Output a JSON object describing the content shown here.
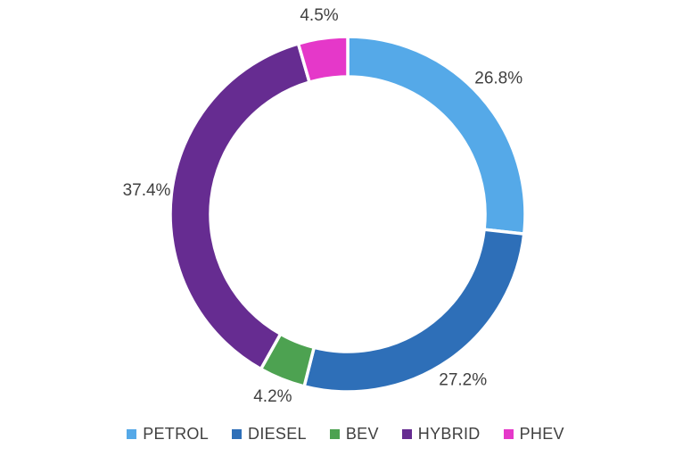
{
  "chart_data": {
    "type": "pie",
    "subtype": "donut",
    "title": "",
    "categories": [
      "PETROL",
      "DIESEL",
      "BEV",
      "HYBRID",
      "PHEV"
    ],
    "values": [
      26.8,
      27.2,
      4.2,
      37.4,
      4.5
    ],
    "data_labels": [
      "26.8%",
      "27.2%",
      "4.2%",
      "37.4%",
      "4.5%"
    ],
    "colors": [
      "#55A9E8",
      "#2E6FB8",
      "#4DA251",
      "#662C91",
      "#E538C9"
    ],
    "start_angle_deg": 0,
    "direction": "clockwise",
    "inner_radius_ratio": 0.775,
    "legend_position": "bottom",
    "label_color": "#404040",
    "background_color": "#FFFFFF",
    "segment_gap_color": "#FFFFFF"
  },
  "legend": {
    "items": [
      {
        "label": "PETROL",
        "color": "#55A9E8"
      },
      {
        "label": "DIESEL",
        "color": "#2E6FB8"
      },
      {
        "label": "BEV",
        "color": "#4DA251"
      },
      {
        "label": "HYBRID",
        "color": "#662C91"
      },
      {
        "label": "PHEV",
        "color": "#E538C9"
      }
    ]
  }
}
